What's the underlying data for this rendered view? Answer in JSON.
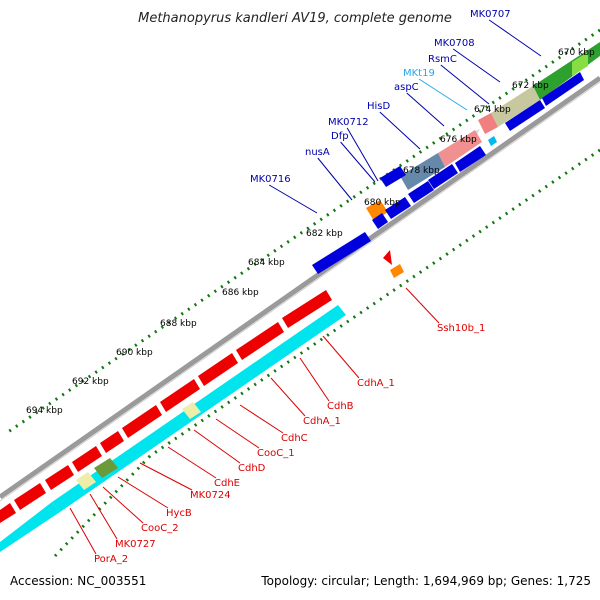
{
  "title": "Methanopyrus kandleri AV19, complete genome",
  "footer": {
    "accession": "Accession: NC_003551",
    "topology": "Topology: circular; Length: 1,694,969 bp; Genes: 1,725"
  },
  "colors": {
    "forward_genes": "#0000dd",
    "reverse_genes": "#ee0000",
    "rna_gene": "#00bbee",
    "cds_band_reverse": "#00e8f0",
    "backbone": "#888888",
    "ticks": "#007700",
    "forward_label": "#0000aa",
    "reverse_label": "#dd0000",
    "rna_label": "#22aaee"
  },
  "kbp_ticks": [
    "670 kbp",
    "672 kbp",
    "674 kbp",
    "676 kbp",
    "678 kbp",
    "680 kbp",
    "682 kbp",
    "684 kbp",
    "686 kbp",
    "688 kbp",
    "690 kbp",
    "692 kbp",
    "694 kbp"
  ],
  "forward_labels": [
    "MK0707",
    "MK0708",
    "RsmC",
    "MKt19",
    "aspC",
    "HisD",
    "MK0712",
    "Dfp",
    "nusA",
    "MK0716"
  ],
  "reverse_labels": [
    "Ssh10b_1",
    "CdhA_1",
    "CdhB",
    "CdhA_1",
    "CdhC",
    "CooC_1",
    "CdhD",
    "CdhE",
    "MK0724",
    "HycB",
    "CooC_2",
    "MK0727",
    "PorA_2"
  ]
}
